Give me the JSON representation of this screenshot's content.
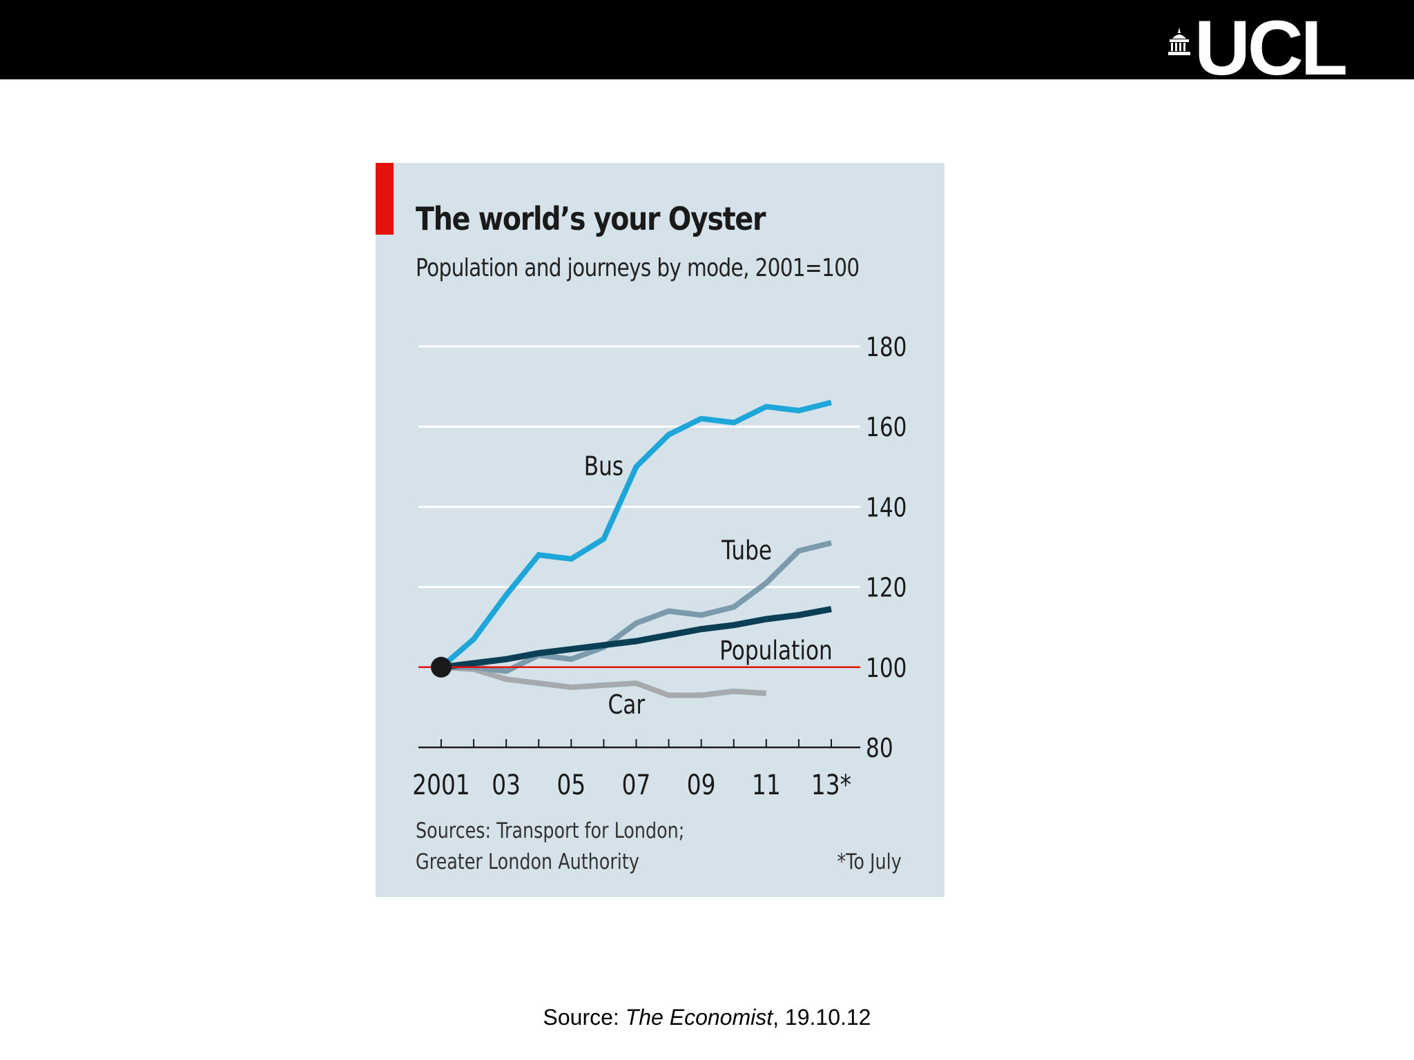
{
  "header": {
    "logo_text": "UCL",
    "logo_icon": "portico-icon",
    "bar_color": "#000000"
  },
  "chart_data": {
    "type": "line",
    "title": "The world’s your Oyster",
    "subtitle": "Population and journeys by mode, 2001=100",
    "xlabel": "",
    "ylabel": "",
    "x": [
      2001,
      2002,
      2003,
      2004,
      2005,
      2006,
      2007,
      2008,
      2009,
      2010,
      2011,
      2012,
      2013
    ],
    "xticks": [
      2001,
      2002,
      2003,
      2004,
      2005,
      2006,
      2007,
      2008,
      2009,
      2010,
      2011,
      2012,
      2013
    ],
    "xtick_labels": [
      {
        "x": 2001,
        "label": "2001"
      },
      {
        "x": 2003,
        "label": "03"
      },
      {
        "x": 2005,
        "label": "05"
      },
      {
        "x": 2007,
        "label": "07"
      },
      {
        "x": 2009,
        "label": "09"
      },
      {
        "x": 2011,
        "label": "11"
      },
      {
        "x": 2013,
        "label": "13*"
      }
    ],
    "ylim": [
      80,
      180
    ],
    "yticks": [
      80,
      100,
      120,
      140,
      160,
      180
    ],
    "ytick_labels": [
      "80",
      "100",
      "120",
      "140",
      "160",
      "180"
    ],
    "grid": true,
    "baseline": 100,
    "series": [
      {
        "name": "Bus",
        "color": "#1ea6d9",
        "values": [
          100,
          107,
          118,
          128,
          127,
          132,
          150,
          158,
          162,
          161,
          165,
          164,
          166
        ],
        "label_at": {
          "x": 2006,
          "y": 150
        }
      },
      {
        "name": "Tube",
        "color": "#7b9aab",
        "values": [
          100,
          100,
          99,
          103,
          102,
          105,
          111,
          114,
          113,
          115,
          121,
          129,
          131
        ],
        "label_at": {
          "x": 2010.4,
          "y": 129
        }
      },
      {
        "name": "Population",
        "color": "#0a3f55",
        "values": [
          100,
          101,
          102,
          103.5,
          104.5,
          105.5,
          106.5,
          108,
          109.5,
          110.5,
          112,
          113,
          114.5
        ],
        "label_at": {
          "x": 2011.3,
          "y": 104
        }
      },
      {
        "name": "Car",
        "color": "#a6aaad",
        "values": [
          100,
          99.5,
          97,
          96,
          95,
          95.5,
          96,
          93,
          93,
          94,
          93.5,
          null,
          null
        ],
        "label_at": {
          "x": 2006.7,
          "y": 90.5
        }
      }
    ],
    "annotations": [
      "*To July"
    ],
    "sources": [
      "Sources: Transport for London;",
      "Greater London Authority"
    ]
  },
  "footer": {
    "source_prefix": "Source: ",
    "source_publication": "The Economist",
    "source_suffix": ", 19.10.12"
  }
}
